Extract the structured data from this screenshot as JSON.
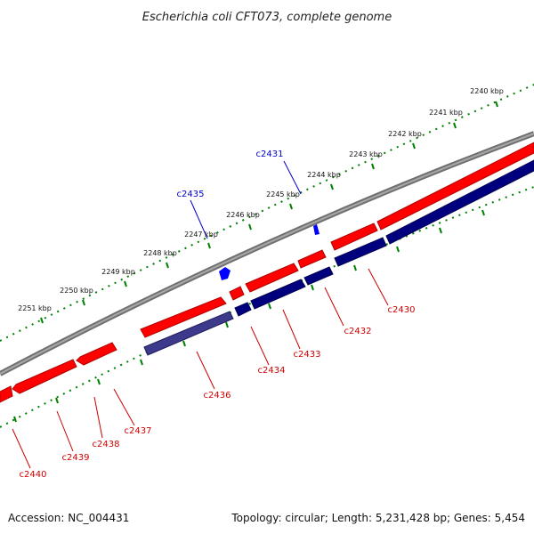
{
  "title": "Escherichia coli CFT073, complete genome",
  "footer": {
    "accession": "Accession: NC_004431",
    "topology": "Topology: circular; Length: 5,231,428 bp; Genes: 5,454"
  },
  "colors": {
    "forward_gene": "#ff0000",
    "reverse_gene": "#00007f",
    "reverse_gene_alt": "#3d3a8c",
    "backbone": "#808080",
    "ticks": "#007f00",
    "forward_label": "#0000cc",
    "reverse_label": "#cc0000"
  },
  "scale_labels": [
    "2240 kbp",
    "2241 kbp",
    "2242 kbp",
    "2243 kbp",
    "2244 kbp",
    "2245 kbp",
    "2246 kbp",
    "2247 kbp",
    "2248 kbp",
    "2249 kbp",
    "2250 kbp",
    "2251 kbp"
  ],
  "forward_labels": [
    "c2431",
    "c2435"
  ],
  "reverse_labels": [
    "c2430",
    "c2432",
    "c2433",
    "c2434",
    "c2436",
    "c2437",
    "c2438",
    "c2439",
    "c2440"
  ]
}
